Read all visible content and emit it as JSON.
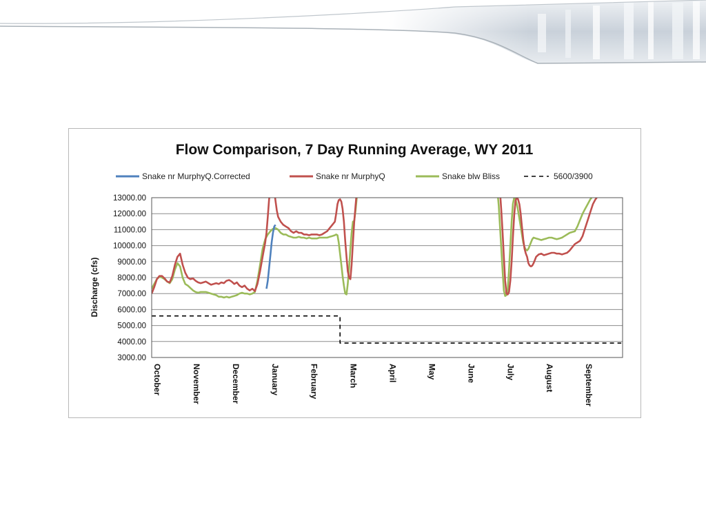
{
  "chart_data": {
    "type": "line",
    "title": "Flow Comparison, 7 Day Running Average, WY 2011",
    "xlabel": "",
    "ylabel": "Discharge (cfs)",
    "ylim": [
      3000,
      13000
    ],
    "y_ticks": [
      "3000.00",
      "4000.00",
      "5000.00",
      "6000.00",
      "7000.00",
      "8000.00",
      "9000.00",
      "10000.00",
      "11000.00",
      "12000.00",
      "13000.00"
    ],
    "x_ticks": [
      "October",
      "November",
      "December",
      "January",
      "February",
      "March",
      "April",
      "May",
      "June",
      "July",
      "August",
      "September"
    ],
    "grid": "horizontal",
    "legend": "top",
    "series": [
      {
        "name": "Snake nr MurphyQ.Corrected",
        "color": "#4f81bd",
        "style": "solid",
        "points": [
          [
            89,
            7300
          ],
          [
            90,
            7800
          ],
          [
            91,
            8600
          ],
          [
            92,
            9400
          ],
          [
            93,
            10200
          ],
          [
            94,
            10800
          ],
          [
            95,
            11200
          ],
          [
            96,
            11300
          ]
        ]
      },
      {
        "name": "Snake nr MurphyQ",
        "color": "#c0504d",
        "style": "solid",
        "points": [
          [
            0,
            7000
          ],
          [
            2,
            7400
          ],
          [
            4,
            7900
          ],
          [
            6,
            8100
          ],
          [
            8,
            8100
          ],
          [
            10,
            7950
          ],
          [
            12,
            7750
          ],
          [
            14,
            7700
          ],
          [
            16,
            8100
          ],
          [
            18,
            8800
          ],
          [
            20,
            9300
          ],
          [
            22,
            9500
          ],
          [
            24,
            8800
          ],
          [
            26,
            8300
          ],
          [
            28,
            8000
          ],
          [
            30,
            7900
          ],
          [
            32,
            7950
          ],
          [
            34,
            7800
          ],
          [
            36,
            7700
          ],
          [
            38,
            7650
          ],
          [
            40,
            7700
          ],
          [
            42,
            7750
          ],
          [
            44,
            7650
          ],
          [
            46,
            7550
          ],
          [
            48,
            7600
          ],
          [
            50,
            7650
          ],
          [
            52,
            7600
          ],
          [
            54,
            7700
          ],
          [
            56,
            7650
          ],
          [
            58,
            7800
          ],
          [
            60,
            7850
          ],
          [
            62,
            7750
          ],
          [
            64,
            7600
          ],
          [
            66,
            7700
          ],
          [
            68,
            7500
          ],
          [
            70,
            7400
          ],
          [
            72,
            7500
          ],
          [
            74,
            7300
          ],
          [
            76,
            7200
          ],
          [
            78,
            7300
          ],
          [
            80,
            7150
          ],
          [
            82,
            7600
          ],
          [
            84,
            8400
          ],
          [
            86,
            9300
          ],
          [
            88,
            10200
          ],
          [
            89,
            10800
          ],
          [
            90,
            11800
          ],
          [
            91,
            12900
          ],
          [
            92,
            13400
          ],
          [
            95,
            13400
          ],
          [
            96,
            12800
          ],
          [
            97,
            12200
          ],
          [
            98,
            11800
          ],
          [
            100,
            11500
          ],
          [
            102,
            11300
          ],
          [
            104,
            11200
          ],
          [
            106,
            11100
          ],
          [
            108,
            10900
          ],
          [
            110,
            10800
          ],
          [
            112,
            10900
          ],
          [
            114,
            10800
          ],
          [
            116,
            10800
          ],
          [
            118,
            10700
          ],
          [
            120,
            10700
          ],
          [
            122,
            10650
          ],
          [
            124,
            10700
          ],
          [
            126,
            10700
          ],
          [
            128,
            10700
          ],
          [
            130,
            10650
          ],
          [
            132,
            10700
          ],
          [
            134,
            10800
          ],
          [
            136,
            10900
          ],
          [
            138,
            11100
          ],
          [
            140,
            11300
          ],
          [
            142,
            11500
          ],
          [
            143,
            12000
          ],
          [
            144,
            12600
          ],
          [
            145,
            12850
          ],
          [
            146,
            12900
          ],
          [
            147,
            12750
          ],
          [
            148,
            12300
          ],
          [
            149,
            11500
          ],
          [
            150,
            10300
          ],
          [
            151,
            9300
          ],
          [
            152,
            8400
          ],
          [
            153,
            8000
          ],
          [
            154,
            7900
          ],
          [
            155,
            8800
          ],
          [
            156,
            10200
          ],
          [
            157,
            11500
          ],
          [
            158,
            12500
          ],
          [
            159,
            13400
          ],
          [
            270,
            13400
          ],
          [
            271,
            12200
          ],
          [
            272,
            10800
          ],
          [
            273,
            9300
          ],
          [
            274,
            7800
          ],
          [
            275,
            7000
          ],
          [
            276,
            6950
          ],
          [
            277,
            7100
          ],
          [
            278,
            7800
          ],
          [
            279,
            9000
          ],
          [
            280,
            10500
          ],
          [
            281,
            11900
          ],
          [
            282,
            12800
          ],
          [
            283,
            13000
          ],
          [
            284,
            12900
          ],
          [
            285,
            12600
          ],
          [
            286,
            12000
          ],
          [
            287,
            11200
          ],
          [
            288,
            10400
          ],
          [
            289,
            9800
          ],
          [
            290,
            9500
          ],
          [
            291,
            9300
          ],
          [
            292,
            8900
          ],
          [
            293,
            8750
          ],
          [
            294,
            8700
          ],
          [
            295,
            8750
          ],
          [
            296,
            8900
          ],
          [
            297,
            9100
          ],
          [
            298,
            9300
          ],
          [
            300,
            9450
          ],
          [
            302,
            9500
          ],
          [
            304,
            9400
          ],
          [
            306,
            9450
          ],
          [
            308,
            9500
          ],
          [
            310,
            9550
          ],
          [
            312,
            9550
          ],
          [
            314,
            9500
          ],
          [
            316,
            9500
          ],
          [
            318,
            9450
          ],
          [
            320,
            9500
          ],
          [
            322,
            9550
          ],
          [
            324,
            9700
          ],
          [
            326,
            9900
          ],
          [
            328,
            10100
          ],
          [
            330,
            10200
          ],
          [
            332,
            10300
          ],
          [
            334,
            10600
          ],
          [
            336,
            11100
          ],
          [
            338,
            11600
          ],
          [
            340,
            12100
          ],
          [
            342,
            12600
          ],
          [
            344,
            12900
          ],
          [
            345,
            13000
          ]
        ]
      },
      {
        "name": "Snake blw Bliss",
        "color": "#9bbb59",
        "style": "solid",
        "points": [
          [
            0,
            7300
          ],
          [
            2,
            7600
          ],
          [
            4,
            7900
          ],
          [
            6,
            8050
          ],
          [
            8,
            8000
          ],
          [
            10,
            7900
          ],
          [
            12,
            7750
          ],
          [
            14,
            7650
          ],
          [
            16,
            7900
          ],
          [
            18,
            8500
          ],
          [
            20,
            8900
          ],
          [
            22,
            8700
          ],
          [
            24,
            8000
          ],
          [
            26,
            7600
          ],
          [
            28,
            7500
          ],
          [
            30,
            7350
          ],
          [
            32,
            7200
          ],
          [
            34,
            7100
          ],
          [
            36,
            7050
          ],
          [
            38,
            7100
          ],
          [
            40,
            7100
          ],
          [
            42,
            7100
          ],
          [
            44,
            7050
          ],
          [
            46,
            7000
          ],
          [
            48,
            6950
          ],
          [
            50,
            6900
          ],
          [
            52,
            6800
          ],
          [
            54,
            6800
          ],
          [
            56,
            6750
          ],
          [
            58,
            6800
          ],
          [
            60,
            6750
          ],
          [
            62,
            6800
          ],
          [
            64,
            6850
          ],
          [
            66,
            6900
          ],
          [
            68,
            7000
          ],
          [
            70,
            7050
          ],
          [
            72,
            7000
          ],
          [
            74,
            7000
          ],
          [
            76,
            6950
          ],
          [
            78,
            7000
          ],
          [
            80,
            7100
          ],
          [
            82,
            7800
          ],
          [
            84,
            8800
          ],
          [
            86,
            9800
          ],
          [
            88,
            10400
          ],
          [
            90,
            10700
          ],
          [
            92,
            10900
          ],
          [
            94,
            11050
          ],
          [
            96,
            11100
          ],
          [
            98,
            11000
          ],
          [
            100,
            10800
          ],
          [
            102,
            10700
          ],
          [
            104,
            10700
          ],
          [
            106,
            10600
          ],
          [
            108,
            10550
          ],
          [
            110,
            10500
          ],
          [
            112,
            10500
          ],
          [
            114,
            10550
          ],
          [
            116,
            10500
          ],
          [
            118,
            10500
          ],
          [
            120,
            10450
          ],
          [
            122,
            10500
          ],
          [
            124,
            10450
          ],
          [
            126,
            10450
          ],
          [
            128,
            10450
          ],
          [
            130,
            10500
          ],
          [
            132,
            10500
          ],
          [
            134,
            10500
          ],
          [
            136,
            10500
          ],
          [
            138,
            10550
          ],
          [
            140,
            10600
          ],
          [
            142,
            10650
          ],
          [
            143,
            10700
          ],
          [
            144,
            10650
          ],
          [
            145,
            10200
          ],
          [
            146,
            9500
          ],
          [
            147,
            8800
          ],
          [
            148,
            8100
          ],
          [
            149,
            7500
          ],
          [
            150,
            7000
          ],
          [
            151,
            6950
          ],
          [
            152,
            7600
          ],
          [
            153,
            8600
          ],
          [
            154,
            9800
          ],
          [
            155,
            10800
          ],
          [
            156,
            11500
          ],
          [
            157,
            11550
          ],
          [
            158,
            12200
          ],
          [
            159,
            13000
          ],
          [
            160,
            13400
          ],
          [
            268,
            13400
          ],
          [
            269,
            12500
          ],
          [
            270,
            11200
          ],
          [
            271,
            9800
          ],
          [
            272,
            8400
          ],
          [
            273,
            7200
          ],
          [
            274,
            6850
          ],
          [
            275,
            6900
          ],
          [
            276,
            7300
          ],
          [
            277,
            8500
          ],
          [
            278,
            10000
          ],
          [
            279,
            11500
          ],
          [
            280,
            12600
          ],
          [
            281,
            13000
          ],
          [
            282,
            12900
          ],
          [
            283,
            12600
          ],
          [
            284,
            12200
          ],
          [
            285,
            11700
          ],
          [
            286,
            11200
          ],
          [
            287,
            10700
          ],
          [
            288,
            10200
          ],
          [
            289,
            9900
          ],
          [
            290,
            9750
          ],
          [
            291,
            9700
          ],
          [
            292,
            9800
          ],
          [
            293,
            10000
          ],
          [
            294,
            10200
          ],
          [
            295,
            10400
          ],
          [
            296,
            10500
          ],
          [
            298,
            10450
          ],
          [
            300,
            10400
          ],
          [
            302,
            10350
          ],
          [
            304,
            10400
          ],
          [
            306,
            10450
          ],
          [
            308,
            10500
          ],
          [
            310,
            10500
          ],
          [
            312,
            10450
          ],
          [
            314,
            10400
          ],
          [
            316,
            10450
          ],
          [
            318,
            10500
          ],
          [
            320,
            10600
          ],
          [
            322,
            10700
          ],
          [
            324,
            10800
          ],
          [
            326,
            10850
          ],
          [
            328,
            10900
          ],
          [
            330,
            11200
          ],
          [
            332,
            11600
          ],
          [
            334,
            12000
          ],
          [
            336,
            12300
          ],
          [
            338,
            12600
          ],
          [
            340,
            12900
          ],
          [
            341,
            13000
          ]
        ]
      },
      {
        "name": "5600/3900",
        "color": "#000000",
        "style": "dashed",
        "points": [
          [
            0,
            5600
          ],
          [
            146,
            5600
          ],
          [
            146,
            3900
          ],
          [
            364,
            3900
          ]
        ]
      }
    ]
  }
}
